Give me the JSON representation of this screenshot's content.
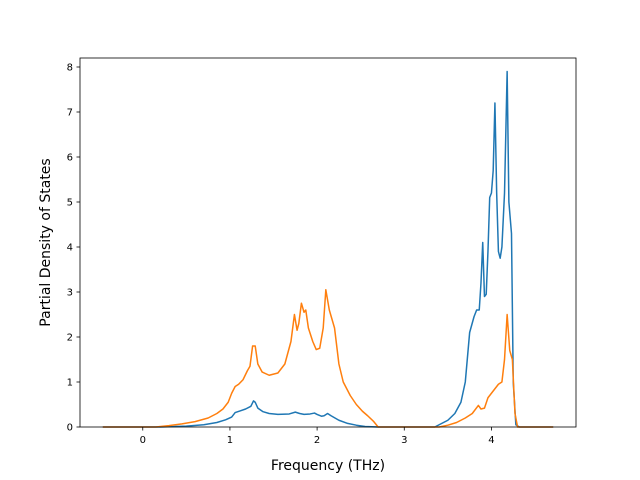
{
  "chart_data": {
    "type": "line",
    "xlabel": "Frequency (THz)",
    "ylabel": "Partial Density of States",
    "xlim": [
      -0.72,
      4.97
    ],
    "ylim": [
      0,
      8.2
    ],
    "xticks": [
      0,
      1,
      2,
      3,
      4
    ],
    "yticks": [
      0,
      1,
      2,
      3,
      4,
      5,
      6,
      7,
      8
    ],
    "grid": false,
    "legend": "none",
    "series": [
      {
        "color": "#1f77b4",
        "points": [
          [
            -0.45,
            0
          ],
          [
            0.2,
            0
          ],
          [
            0.5,
            0.02
          ],
          [
            0.7,
            0.05
          ],
          [
            0.85,
            0.1
          ],
          [
            0.95,
            0.16
          ],
          [
            1.02,
            0.22
          ],
          [
            1.06,
            0.32
          ],
          [
            1.12,
            0.36
          ],
          [
            1.18,
            0.4
          ],
          [
            1.24,
            0.46
          ],
          [
            1.27,
            0.58
          ],
          [
            1.29,
            0.55
          ],
          [
            1.32,
            0.42
          ],
          [
            1.38,
            0.34
          ],
          [
            1.45,
            0.3
          ],
          [
            1.55,
            0.28
          ],
          [
            1.68,
            0.29
          ],
          [
            1.75,
            0.33
          ],
          [
            1.8,
            0.3
          ],
          [
            1.85,
            0.28
          ],
          [
            1.92,
            0.29
          ],
          [
            1.97,
            0.31
          ],
          [
            2.0,
            0.28
          ],
          [
            2.05,
            0.24
          ],
          [
            2.08,
            0.25
          ],
          [
            2.12,
            0.3
          ],
          [
            2.16,
            0.25
          ],
          [
            2.25,
            0.15
          ],
          [
            2.35,
            0.08
          ],
          [
            2.45,
            0.04
          ],
          [
            2.55,
            0.01
          ],
          [
            2.7,
            0
          ],
          [
            3.35,
            0
          ],
          [
            3.4,
            0.05
          ],
          [
            3.5,
            0.15
          ],
          [
            3.58,
            0.3
          ],
          [
            3.65,
            0.55
          ],
          [
            3.7,
            1.0
          ],
          [
            3.75,
            2.1
          ],
          [
            3.8,
            2.45
          ],
          [
            3.83,
            2.6
          ],
          [
            3.86,
            2.6
          ],
          [
            3.88,
            3.2
          ],
          [
            3.9,
            4.1
          ],
          [
            3.92,
            2.9
          ],
          [
            3.94,
            2.95
          ],
          [
            3.96,
            3.9
          ],
          [
            3.98,
            5.1
          ],
          [
            4.0,
            5.2
          ],
          [
            4.02,
            5.7
          ],
          [
            4.04,
            7.2
          ],
          [
            4.06,
            5.2
          ],
          [
            4.08,
            3.9
          ],
          [
            4.1,
            3.75
          ],
          [
            4.12,
            4.0
          ],
          [
            4.15,
            5.2
          ],
          [
            4.18,
            7.9
          ],
          [
            4.2,
            5.0
          ],
          [
            4.23,
            4.3
          ],
          [
            4.25,
            1.0
          ],
          [
            4.28,
            0.05
          ],
          [
            4.32,
            0
          ],
          [
            4.7,
            0
          ]
        ]
      },
      {
        "color": "#ff7f0e",
        "points": [
          [
            -0.45,
            0
          ],
          [
            0.15,
            0
          ],
          [
            0.3,
            0.03
          ],
          [
            0.45,
            0.07
          ],
          [
            0.6,
            0.12
          ],
          [
            0.75,
            0.2
          ],
          [
            0.85,
            0.3
          ],
          [
            0.92,
            0.4
          ],
          [
            0.98,
            0.55
          ],
          [
            1.02,
            0.75
          ],
          [
            1.06,
            0.9
          ],
          [
            1.1,
            0.95
          ],
          [
            1.15,
            1.05
          ],
          [
            1.2,
            1.25
          ],
          [
            1.23,
            1.35
          ],
          [
            1.26,
            1.8
          ],
          [
            1.29,
            1.8
          ],
          [
            1.32,
            1.4
          ],
          [
            1.37,
            1.22
          ],
          [
            1.45,
            1.15
          ],
          [
            1.55,
            1.2
          ],
          [
            1.63,
            1.4
          ],
          [
            1.7,
            1.9
          ],
          [
            1.74,
            2.5
          ],
          [
            1.77,
            2.15
          ],
          [
            1.79,
            2.3
          ],
          [
            1.82,
            2.75
          ],
          [
            1.85,
            2.55
          ],
          [
            1.87,
            2.6
          ],
          [
            1.9,
            2.2
          ],
          [
            1.95,
            1.9
          ],
          [
            1.99,
            1.72
          ],
          [
            2.03,
            1.75
          ],
          [
            2.07,
            2.2
          ],
          [
            2.1,
            3.05
          ],
          [
            2.14,
            2.6
          ],
          [
            2.2,
            2.2
          ],
          [
            2.25,
            1.4
          ],
          [
            2.3,
            1.0
          ],
          [
            2.38,
            0.7
          ],
          [
            2.45,
            0.5
          ],
          [
            2.52,
            0.35
          ],
          [
            2.58,
            0.25
          ],
          [
            2.65,
            0.12
          ],
          [
            2.7,
            0
          ],
          [
            3.4,
            0
          ],
          [
            3.5,
            0.04
          ],
          [
            3.6,
            0.1
          ],
          [
            3.7,
            0.2
          ],
          [
            3.78,
            0.3
          ],
          [
            3.85,
            0.48
          ],
          [
            3.88,
            0.4
          ],
          [
            3.92,
            0.42
          ],
          [
            3.96,
            0.65
          ],
          [
            4.0,
            0.75
          ],
          [
            4.04,
            0.85
          ],
          [
            4.08,
            0.95
          ],
          [
            4.12,
            1.0
          ],
          [
            4.15,
            1.5
          ],
          [
            4.18,
            2.5
          ],
          [
            4.21,
            1.7
          ],
          [
            4.24,
            1.5
          ],
          [
            4.27,
            0.3
          ],
          [
            4.3,
            0
          ],
          [
            4.7,
            0
          ]
        ]
      }
    ]
  }
}
